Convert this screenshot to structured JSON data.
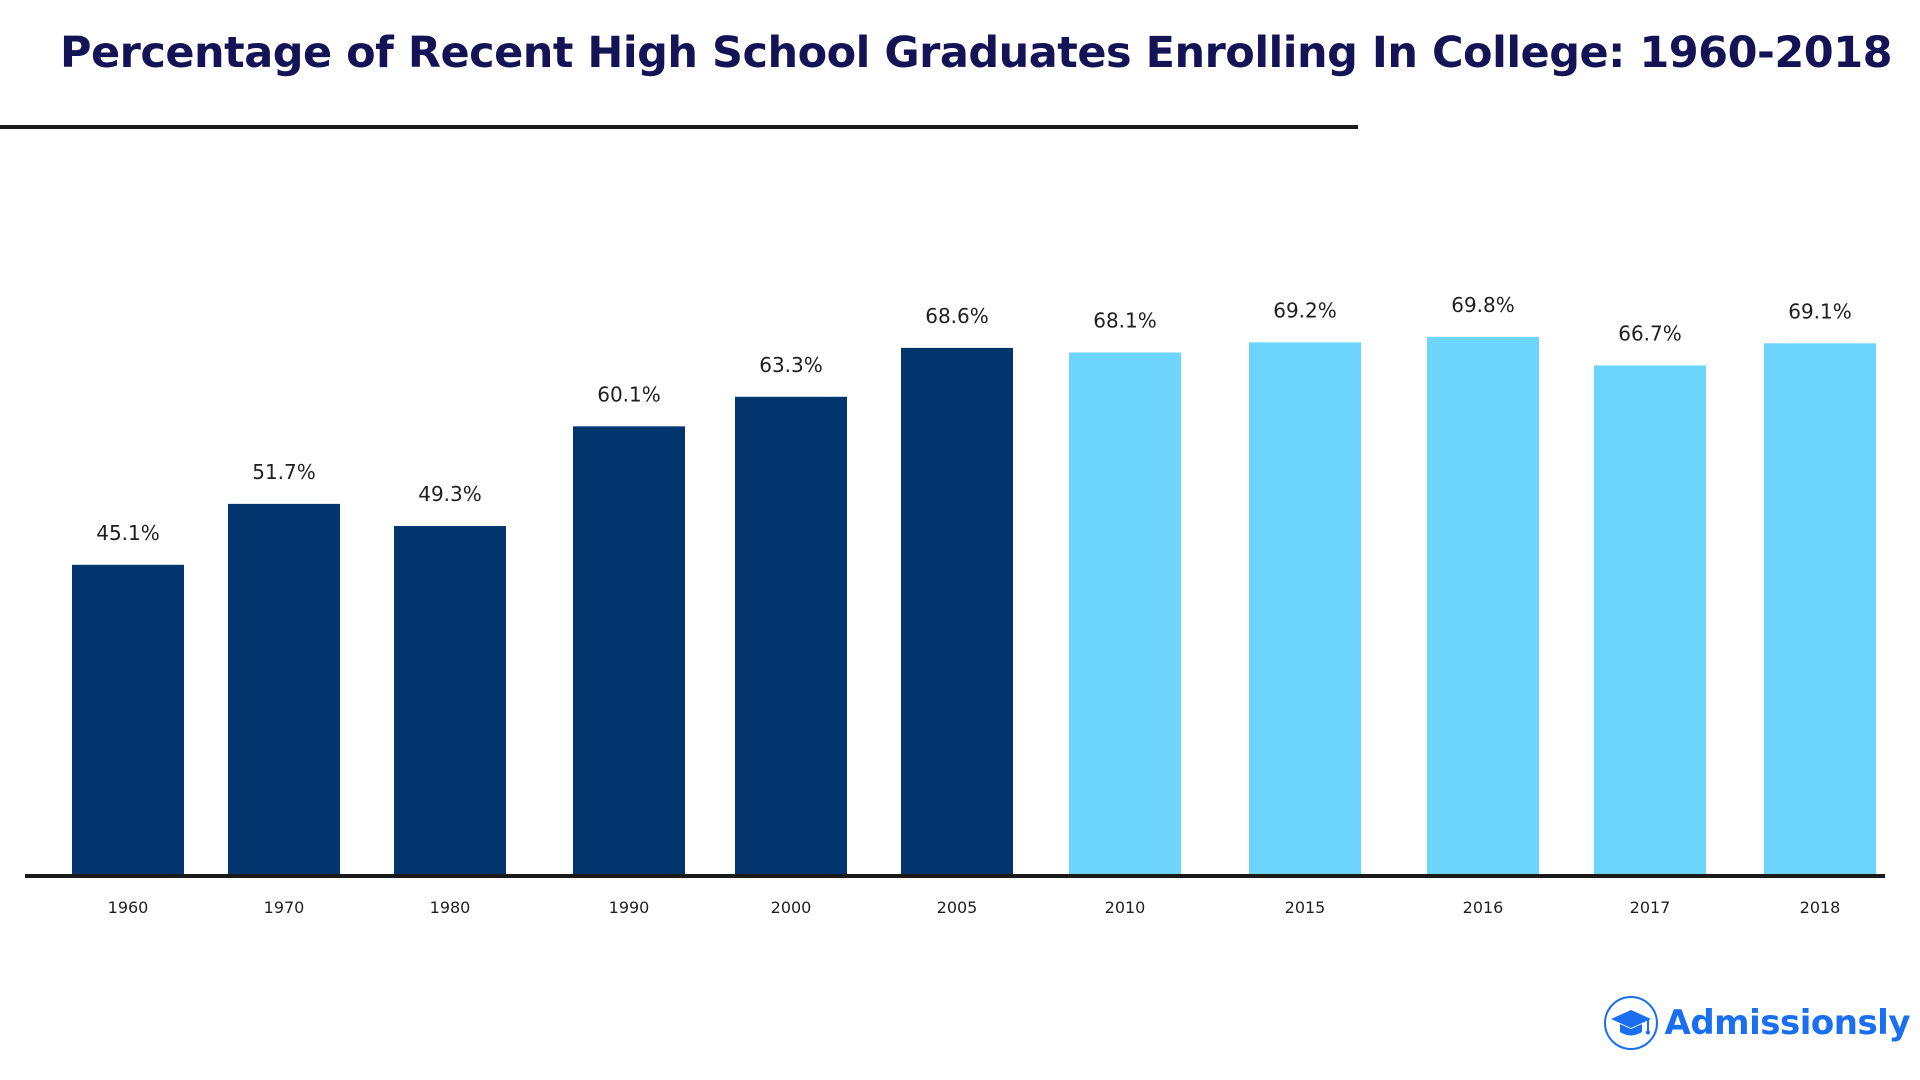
{
  "brand": {
    "name": "Admissionsly",
    "icon": "graduation-cap-icon",
    "color": "#1a6ff0"
  },
  "chart_data": {
    "type": "bar",
    "title": "Percentage of Recent High School Graduates Enrolling In College: 1960-2018",
    "xlabel": "",
    "ylabel": "",
    "categories": [
      "1960",
      "1970",
      "1980",
      "1990",
      "2000",
      "2005",
      "2010",
      "2015",
      "2016",
      "2017",
      "2018"
    ],
    "values": [
      45.1,
      51.7,
      49.3,
      60.1,
      63.3,
      68.6,
      68.1,
      69.2,
      69.8,
      66.7,
      69.1
    ],
    "value_labels": [
      "45.1%",
      "51.7%",
      "49.3%",
      "60.1%",
      "63.3%",
      "68.6%",
      "68.1%",
      "69.2%",
      "69.8%",
      "66.7%",
      "69.1%"
    ],
    "bar_colors": [
      "#02356e",
      "#02356e",
      "#02356e",
      "#02356e",
      "#02356e",
      "#02356e",
      "#6dd5fd",
      "#6dd5fd",
      "#6dd5fd",
      "#6dd5fd",
      "#6dd5fd"
    ],
    "ylim": [
      0,
      75
    ],
    "grid": false,
    "legend": "none"
  }
}
